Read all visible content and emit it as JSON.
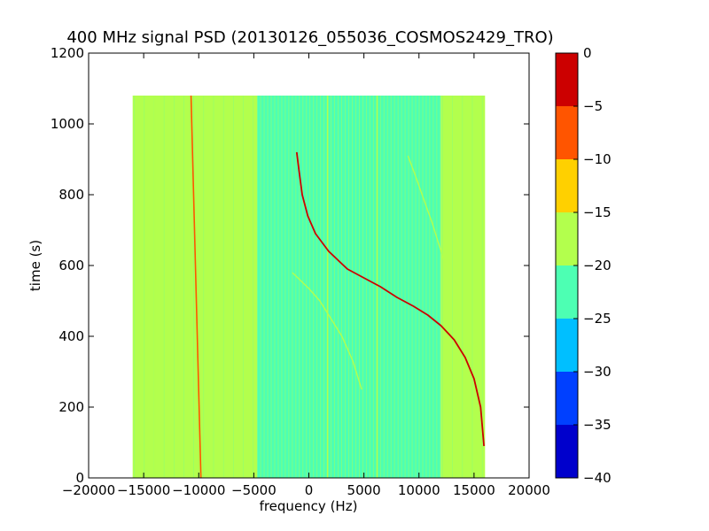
{
  "chart_data": {
    "type": "heatmap",
    "title": "400 MHz signal PSD (20130126_055036_COSMOS2429_TRO)",
    "xlabel": "frequency (Hz)",
    "ylabel": "time (s)",
    "xlim": [
      -20000,
      20000
    ],
    "ylim": [
      0,
      1200
    ],
    "xticks": [
      -20000,
      -15000,
      -10000,
      -5000,
      0,
      5000,
      10000,
      15000,
      20000
    ],
    "yticks": [
      0,
      200,
      400,
      600,
      800,
      1000,
      1200
    ],
    "data_extent": {
      "x": [
        -16000,
        16000
      ],
      "y": [
        0,
        1080
      ]
    },
    "background_bands": [
      {
        "x": [
          -16000,
          -4700
        ],
        "level": -17.5
      },
      {
        "x": [
          -4700,
          12000
        ],
        "level": -21
      },
      {
        "x": [
          12000,
          16000
        ],
        "level": -18
      }
    ],
    "vertical_lines": [
      {
        "x_top": -10700,
        "x_bottom": -9800,
        "level": -5
      },
      {
        "x": 6200,
        "level": -16
      },
      {
        "x": 1700,
        "level": -17
      },
      {
        "x": -14000,
        "level": -16
      }
    ],
    "traces": [
      {
        "name": "main signal",
        "level": -3,
        "points": [
          [
            -1100,
            920
          ],
          [
            -900,
            870
          ],
          [
            -600,
            800
          ],
          [
            -100,
            740
          ],
          [
            600,
            690
          ],
          [
            1800,
            640
          ],
          [
            3500,
            590
          ],
          [
            5000,
            565
          ],
          [
            6500,
            540
          ],
          [
            8000,
            510
          ],
          [
            9500,
            485
          ],
          [
            10800,
            460
          ],
          [
            12000,
            430
          ],
          [
            13200,
            390
          ],
          [
            14200,
            340
          ],
          [
            15000,
            280
          ],
          [
            15600,
            200
          ],
          [
            15900,
            90
          ]
        ]
      },
      {
        "name": "secondary signal",
        "level": -17,
        "points": [
          [
            -1500,
            580
          ],
          [
            0,
            535
          ],
          [
            1000,
            500
          ],
          [
            2000,
            450
          ],
          [
            3000,
            400
          ],
          [
            4000,
            330
          ],
          [
            4800,
            250
          ]
        ]
      },
      {
        "name": "faint upper signal",
        "level": -17,
        "points": [
          [
            9000,
            910
          ],
          [
            9600,
            860
          ],
          [
            10400,
            790
          ],
          [
            11200,
            720
          ],
          [
            11900,
            650
          ],
          [
            12400,
            600
          ]
        ]
      }
    ],
    "colorbar": {
      "min": -40,
      "max": 0,
      "ticks": [
        0,
        -5,
        -10,
        -15,
        -20,
        -25,
        -30,
        -35,
        -40
      ],
      "levels": [
        {
          "range": [
            -40,
            -35
          ],
          "color": "#0000cc"
        },
        {
          "range": [
            -35,
            -30
          ],
          "color": "#0040ff"
        },
        {
          "range": [
            -30,
            -25
          ],
          "color": "#00bfff"
        },
        {
          "range": [
            -25,
            -20
          ],
          "color": "#4dffb3"
        },
        {
          "range": [
            -20,
            -15
          ],
          "color": "#b3ff4d"
        },
        {
          "range": [
            -15,
            -10
          ],
          "color": "#ffd000"
        },
        {
          "range": [
            -10,
            -5
          ],
          "color": "#ff5500"
        },
        {
          "range": [
            -5,
            0
          ],
          "color": "#cc0000"
        }
      ]
    }
  }
}
